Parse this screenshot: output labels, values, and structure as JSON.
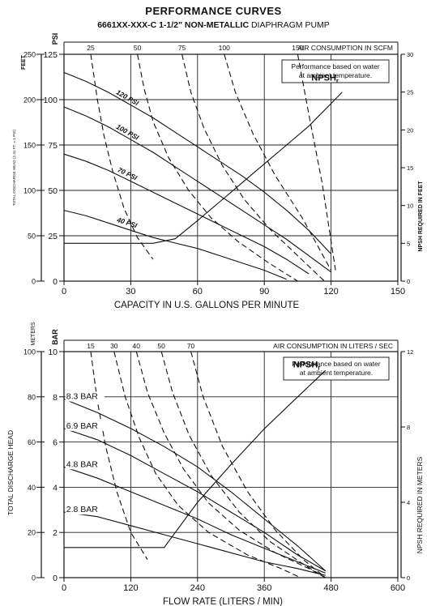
{
  "header": {
    "title": "PERFORMANCE CURVES",
    "model_bold": "6661XX-XXX-C  1-1/2\" NON-METALLIC",
    "model_rest": " DIAPHRAGM PUMP"
  },
  "chart_data": [
    {
      "type": "line",
      "units": "US",
      "xlabel": "CAPACITY IN U.S. GALLONS PER MINUTE",
      "xlim": [
        0,
        150
      ],
      "x_ticks": [
        0,
        30,
        60,
        90,
        120,
        150
      ],
      "ylim_left_psi": [
        0,
        125
      ],
      "left_psi_label": "PSI",
      "left_psi_ticks": [
        0,
        25,
        50,
        75,
        100,
        125
      ],
      "left_feet_label": "FEET",
      "left_feet_ticks": [
        0,
        50,
        100,
        150,
        200,
        250
      ],
      "left_rotated_label": "TOTAL DISCHARGE HEAD (2.31 FT. = 1 PSI)",
      "right_label": "NPSH REQUIRED IN FEET",
      "right_ticks": [
        0,
        5,
        10,
        15,
        20,
        25,
        30
      ],
      "ylim_right": [
        0,
        30
      ],
      "top_label": "AIR CONSUMPTION IN SCFM",
      "top_ticks": [
        25,
        50,
        75,
        100,
        150
      ],
      "note": "Performance based on water at ambient temperature.",
      "npsh_label": "NPSHr",
      "grid": true,
      "pressure_series": [
        {
          "name": "120 PSI",
          "x": [
            0,
            10,
            20,
            30,
            40,
            50,
            60,
            70,
            80,
            90,
            100,
            110,
            120
          ],
          "y": [
            115,
            110,
            104,
            97,
            90,
            82,
            74,
            66,
            58,
            49,
            39,
            28,
            15
          ]
        },
        {
          "name": "100 PSI",
          "x": [
            0,
            10,
            20,
            30,
            40,
            50,
            60,
            70,
            80,
            90,
            100,
            110,
            120
          ],
          "y": [
            96,
            91,
            85,
            78,
            71,
            63,
            55,
            47,
            39,
            31,
            23,
            14,
            5
          ]
        },
        {
          "name": "70 PSI",
          "x": [
            0,
            10,
            20,
            30,
            40,
            50,
            60,
            70,
            80,
            90,
            100,
            110
          ],
          "y": [
            70,
            66,
            61,
            55,
            49,
            43,
            37,
            31,
            25,
            19,
            12,
            4
          ]
        },
        {
          "name": "40 PSI",
          "x": [
            0,
            10,
            20,
            30,
            40,
            50,
            60,
            70,
            80,
            90,
            100
          ],
          "y": [
            39,
            36,
            32,
            28,
            24,
            21,
            18,
            14,
            10,
            6,
            1
          ]
        }
      ],
      "air_series": [
        {
          "name": "25",
          "x": [
            12,
            15,
            18,
            22,
            27,
            33,
            40
          ],
          "y": [
            125,
            100,
            80,
            60,
            40,
            24,
            12
          ]
        },
        {
          "name": "50",
          "x": [
            33,
            36,
            40,
            47,
            56,
            66,
            78,
            92,
            105
          ],
          "y": [
            125,
            106,
            88,
            68,
            50,
            35,
            22,
            10,
            0
          ]
        },
        {
          "name": "75",
          "x": [
            53,
            57,
            63,
            71,
            81,
            93,
            105,
            117
          ],
          "y": [
            125,
            104,
            84,
            64,
            45,
            28,
            14,
            0
          ]
        },
        {
          "name": "100",
          "x": [
            72,
            77,
            85,
            95,
            107,
            120
          ],
          "y": [
            125,
            104,
            81,
            58,
            35,
            6
          ]
        },
        {
          "name": "150",
          "x": [
            105,
            110,
            116,
            122
          ],
          "y": [
            125,
            92,
            54,
            6
          ]
        }
      ],
      "npsh": {
        "x": [
          0,
          40,
          50,
          60,
          70,
          80,
          90,
          100,
          110,
          120,
          125
        ],
        "y": [
          5,
          5,
          5.6,
          8,
          10.5,
          13,
          15.5,
          18,
          20.5,
          23.5,
          25
        ]
      }
    },
    {
      "type": "line",
      "units": "Metric",
      "xlabel": "FLOW RATE (LITERS / MIN)",
      "xlim": [
        0,
        600
      ],
      "x_ticks": [
        0,
        120,
        240,
        360,
        480,
        600
      ],
      "ylim_left_bar": [
        0,
        10
      ],
      "left_bar_label": "BAR",
      "left_bar_ticks": [
        0,
        2,
        4,
        6,
        8,
        10
      ],
      "left_meters_label": "METERS",
      "left_meters_ticks": [
        0,
        20,
        40,
        60,
        80,
        100
      ],
      "left_rotated_label": "TOTAL DISCHARGE HEAD",
      "right_label": "NPSH REQUIRED IN METERS",
      "right_ticks": [
        0,
        4,
        8,
        12
      ],
      "ylim_right": [
        0,
        12
      ],
      "top_label": "AIR CONSUMPTION IN LITERS / SEC",
      "top_ticks": [
        15,
        30,
        40,
        50,
        70
      ],
      "note": "Performance based on water at ambient temperature.",
      "npsh_label": "NPSHr",
      "grid": true,
      "pressure_series": [
        {
          "name": "8.3 BAR",
          "x": [
            0,
            60,
            120,
            180,
            240,
            300,
            360,
            420,
            470
          ],
          "y": [
            7.9,
            7.3,
            6.6,
            5.8,
            4.9,
            3.8,
            2.6,
            1.4,
            0.3
          ]
        },
        {
          "name": "6.9 BAR",
          "x": [
            0,
            60,
            120,
            180,
            240,
            300,
            360,
            420,
            470
          ],
          "y": [
            6.6,
            6.1,
            5.4,
            4.6,
            3.8,
            2.9,
            2.0,
            1.0,
            0.3
          ]
        },
        {
          "name": "4.8 BAR",
          "x": [
            0,
            60,
            120,
            180,
            240,
            300,
            360,
            420,
            470
          ],
          "y": [
            4.9,
            4.4,
            3.8,
            3.2,
            2.6,
            1.9,
            1.3,
            0.7,
            0.2
          ]
        },
        {
          "name": "2.8 BAR",
          "x": [
            0,
            60,
            120,
            180,
            240,
            300,
            360,
            420,
            470
          ],
          "y": [
            2.9,
            2.7,
            2.3,
            1.9,
            1.5,
            1.1,
            0.7,
            0.4,
            0.1
          ]
        }
      ],
      "air_series": [
        {
          "name": "15",
          "x": [
            48,
            60,
            75,
            95,
            120,
            150
          ],
          "y": [
            10,
            7.8,
            5.8,
            3.8,
            2.0,
            0.8
          ]
        },
        {
          "name": "30",
          "x": [
            90,
            110,
            135,
            165,
            205,
            260,
            330,
            390,
            425
          ],
          "y": [
            10,
            8.0,
            6.2,
            4.6,
            3.2,
            2.0,
            1.0,
            0.4,
            0
          ]
        },
        {
          "name": "40",
          "x": [
            130,
            150,
            180,
            215,
            260,
            315,
            380,
            440,
            470
          ],
          "y": [
            10,
            8.2,
            6.4,
            4.8,
            3.3,
            2.1,
            1.1,
            0.4,
            0
          ]
        },
        {
          "name": "50",
          "x": [
            175,
            195,
            225,
            265,
            315,
            370,
            430,
            470
          ],
          "y": [
            10,
            8.2,
            6.3,
            4.5,
            2.9,
            1.6,
            0.6,
            0
          ]
        },
        {
          "name": "70",
          "x": [
            228,
            250,
            285,
            330,
            380,
            430,
            470
          ],
          "y": [
            10,
            8.0,
            5.8,
            3.8,
            2.1,
            0.8,
            0
          ]
        }
      ],
      "npsh": {
        "x": [
          0,
          180,
          240,
          300,
          360,
          420,
          470
        ],
        "y": [
          1.6,
          1.6,
          4.0,
          6.0,
          7.9,
          9.6,
          11.0
        ]
      }
    }
  ]
}
